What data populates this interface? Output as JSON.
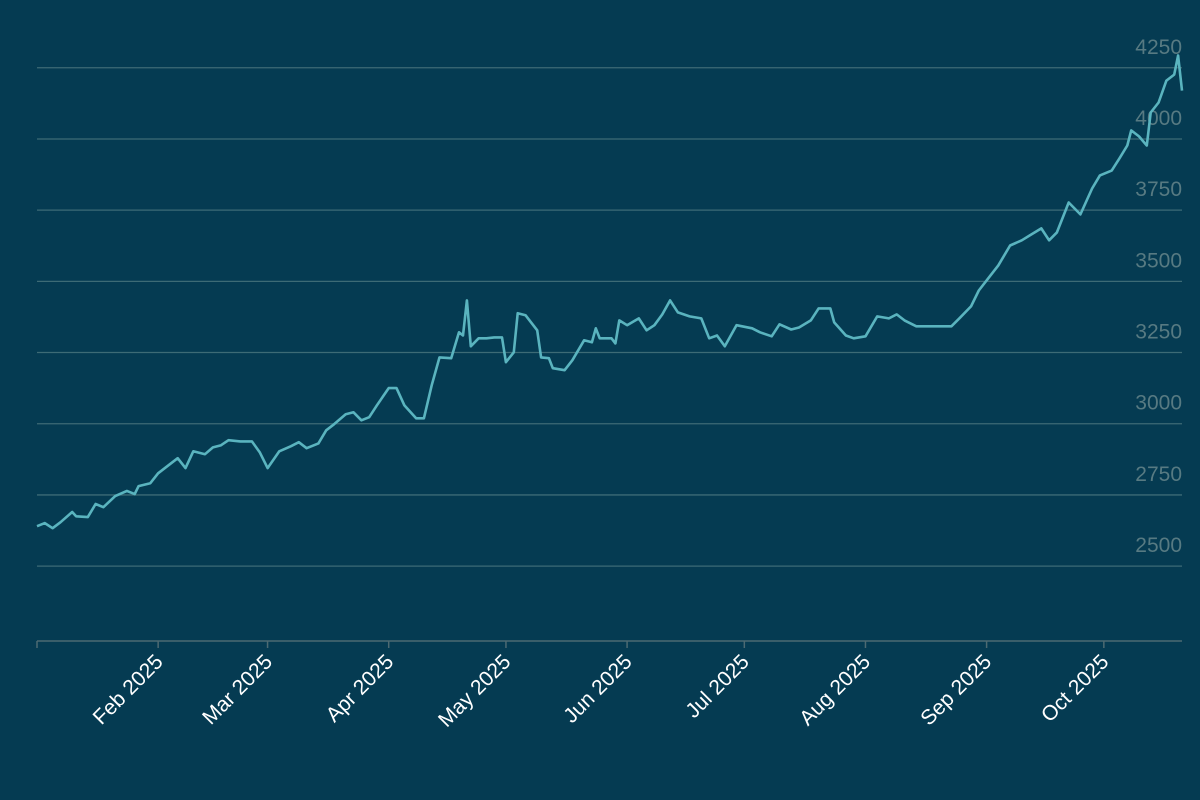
{
  "chart_data": {
    "type": "line",
    "x": [
      0,
      2,
      4,
      6,
      9,
      10,
      13,
      15,
      17,
      20,
      23,
      25,
      26,
      29,
      31,
      34,
      36,
      38,
      40,
      43,
      45,
      47,
      49,
      52,
      55,
      57,
      59,
      62,
      65,
      67,
      69,
      72,
      74,
      76,
      79,
      81,
      83,
      85,
      87,
      90,
      92,
      94,
      97,
      99,
      101,
      103,
      106,
      108,
      109,
      110,
      111,
      113,
      115,
      117,
      119,
      120,
      122,
      123,
      125,
      128,
      129,
      131,
      132,
      135,
      137,
      140,
      142,
      143,
      144,
      147,
      148,
      149,
      151,
      154,
      156,
      158,
      160,
      162,
      164,
      167,
      170,
      172,
      174,
      176,
      179,
      183,
      185,
      188,
      190,
      193,
      195,
      198,
      200,
      203,
      204,
      207,
      209,
      212,
      215,
      218,
      220,
      222,
      225,
      228,
      231,
      234,
      236,
      239,
      241,
      244,
      246,
      249,
      252,
      254,
      257,
      259,
      261,
      264,
      267,
      270,
      272,
      275,
      277,
      279,
      280,
      282,
      284,
      285,
      287,
      289,
      291,
      292,
      293
    ],
    "values": [
      2640,
      2651,
      2633,
      2654,
      2690,
      2675,
      2672,
      2718,
      2707,
      2746,
      2764,
      2753,
      2781,
      2791,
      2826,
      2858,
      2879,
      2844,
      2903,
      2893,
      2917,
      2924,
      2942,
      2938,
      2938,
      2900,
      2844,
      2903,
      2921,
      2935,
      2914,
      2931,
      2977,
      2998,
      3033,
      3040,
      3012,
      3023,
      3065,
      3125,
      3125,
      3065,
      3019,
      3019,
      3135,
      3233,
      3230,
      3321,
      3310,
      3433,
      3272,
      3300,
      3300,
      3303,
      3303,
      3216,
      3251,
      3388,
      3381,
      3328,
      3233,
      3230,
      3195,
      3188,
      3223,
      3293,
      3286,
      3335,
      3300,
      3300,
      3282,
      3363,
      3346,
      3370,
      3328,
      3346,
      3384,
      3433,
      3391,
      3377,
      3370,
      3300,
      3310,
      3272,
      3346,
      3335,
      3321,
      3307,
      3349,
      3331,
      3338,
      3363,
      3405,
      3405,
      3356,
      3310,
      3300,
      3307,
      3377,
      3370,
      3384,
      3363,
      3342,
      3342,
      3342,
      3342,
      3370,
      3412,
      3468,
      3521,
      3556,
      3626,
      3644,
      3661,
      3686,
      3644,
      3672,
      3777,
      3735,
      3826,
      3872,
      3889,
      3932,
      3977,
      4030,
      4009,
      3977,
      4093,
      4128,
      4205,
      4226,
      4293,
      4170
    ],
    "color": "#5ab4bf",
    "xlim": [
      0,
      293
    ],
    "xticks": [
      {
        "value": 31,
        "label": "Feb 2025"
      },
      {
        "value": 59,
        "label": "Mar 2025"
      },
      {
        "value": 90,
        "label": "Apr 2025"
      },
      {
        "value": 120,
        "label": "May 2025"
      },
      {
        "value": 151,
        "label": "Jun 2025"
      },
      {
        "value": 181,
        "label": "Jul 2025"
      },
      {
        "value": 212,
        "label": "Aug 2025"
      },
      {
        "value": 243,
        "label": "Sep 2025"
      },
      {
        "value": 273,
        "label": "Oct 2025"
      }
    ],
    "ylim": [
      2237,
      4488
    ],
    "yticks": [
      2500,
      2750,
      3000,
      3250,
      3500,
      3750,
      4000,
      4250
    ],
    "grid": true
  }
}
